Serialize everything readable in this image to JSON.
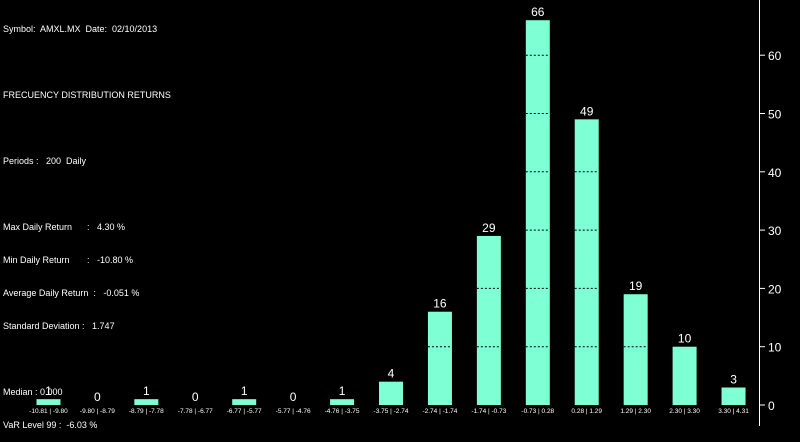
{
  "header": {
    "symbol_line": "Symbol:  AMXL.MX  Date:  02/10/2013",
    "title": "FRECUENCY DISTRIBUTION RETURNS",
    "periods": "Periods :   200  Daily",
    "max_return": "Max Daily Return      :   4.30 %",
    "min_return": "Min Daily Return       :   -10.80 %",
    "avg_return": "Average Daily Return  :   -0.051 %",
    "std_dev": "Standard Deviation :   1.747",
    "median": "Median : 0.000",
    "var_level": "VaR Level 99 :  -6.03 %"
  },
  "colors": {
    "background": "#000000",
    "bar": "#7fffd4",
    "grid": "#000000",
    "text": "#ffffff"
  },
  "chart_data": {
    "type": "bar",
    "title": "FRECUENCY DISTRIBUTION RETURNS",
    "categories": [
      "-10.81 | -9.80",
      "-9.80 | -8.79",
      "-8.79 | -7.78",
      "-7.78 | -6.77",
      "-6.77 | -5.77",
      "-5.77 | -4.76",
      "-4.76 | -3.75",
      "-3.75 | -2.74",
      "-2.74 | -1.74",
      "-1.74 | -0.73",
      "-0.73 | 0.28",
      "0.28 | 1.29",
      "1.29 | 2.30",
      "2.30 | 3.30",
      "3.30 | 4.31"
    ],
    "values": [
      1,
      0,
      1,
      0,
      1,
      0,
      1,
      4,
      16,
      29,
      66,
      49,
      19,
      10,
      3
    ],
    "yticks": [
      0,
      10,
      20,
      30,
      40,
      50,
      60
    ],
    "ylim": [
      0,
      70
    ],
    "grid": "dashed inside bars",
    "axis_position": "right"
  }
}
